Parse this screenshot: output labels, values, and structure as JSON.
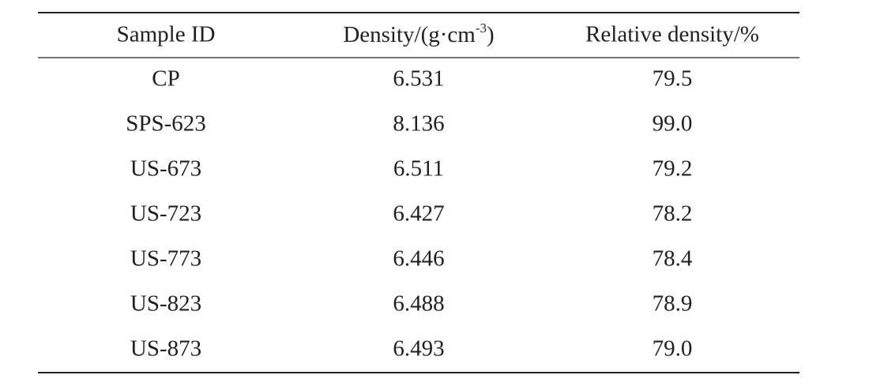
{
  "table": {
    "header": [
      "Sample ID",
      [
        "Density/(g·cm",
        "-3",
        ")"
      ],
      "Relative density/%"
    ],
    "rows": [
      [
        "CP",
        "6.531",
        "79.5"
      ],
      [
        "SPS-623",
        "8.136",
        "99.0"
      ],
      [
        "US-673",
        "6.511",
        "79.2"
      ],
      [
        "US-723",
        "6.427",
        "78.2"
      ],
      [
        "US-773",
        "6.446",
        "78.4"
      ],
      [
        "US-823",
        "6.488",
        "78.9"
      ],
      [
        "US-873",
        "6.493",
        "79.0"
      ]
    ]
  }
}
